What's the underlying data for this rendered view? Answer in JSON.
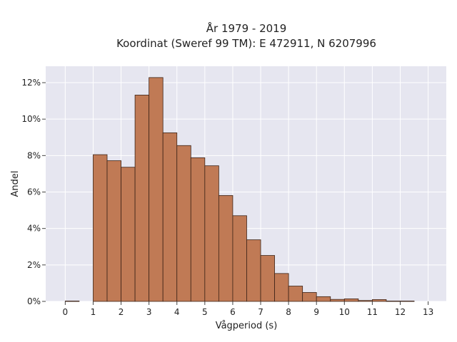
{
  "chart_data": {
    "type": "bar",
    "title_lines": [
      "År 1979 - 2019",
      "Koordinat (Sweref 99 TM): E 472911, N 6207996"
    ],
    "xlabel": "Vågperiod (s)",
    "ylabel": "Andel",
    "bin_width": 0.5,
    "bins": [
      {
        "start": 0.0,
        "value": 0.02
      },
      {
        "start": 1.0,
        "value": 8.05
      },
      {
        "start": 1.5,
        "value": 7.72
      },
      {
        "start": 2.0,
        "value": 7.36
      },
      {
        "start": 2.5,
        "value": 11.32
      },
      {
        "start": 3.0,
        "value": 12.28
      },
      {
        "start": 3.5,
        "value": 9.25
      },
      {
        "start": 4.0,
        "value": 8.55
      },
      {
        "start": 4.5,
        "value": 7.88
      },
      {
        "start": 5.0,
        "value": 7.44
      },
      {
        "start": 5.5,
        "value": 5.81
      },
      {
        "start": 6.0,
        "value": 4.7
      },
      {
        "start": 6.5,
        "value": 3.38
      },
      {
        "start": 7.0,
        "value": 2.52
      },
      {
        "start": 7.5,
        "value": 1.53
      },
      {
        "start": 8.0,
        "value": 0.84
      },
      {
        "start": 8.5,
        "value": 0.49
      },
      {
        "start": 9.0,
        "value": 0.26
      },
      {
        "start": 9.5,
        "value": 0.11
      },
      {
        "start": 10.0,
        "value": 0.14
      },
      {
        "start": 10.5,
        "value": 0.05
      },
      {
        "start": 11.0,
        "value": 0.1
      },
      {
        "start": 11.5,
        "value": 0.02
      },
      {
        "start": 12.0,
        "value": 0.02
      }
    ],
    "xlim": [
      -0.7,
      13.65
    ],
    "ylim": [
      0,
      12.9
    ],
    "x_ticks": [
      0,
      1,
      2,
      3,
      4,
      5,
      6,
      7,
      8,
      9,
      10,
      11,
      12,
      13
    ],
    "x_tick_labels": [
      "0",
      "1",
      "2",
      "3",
      "4",
      "5",
      "6",
      "7",
      "8",
      "9",
      "10",
      "11",
      "12",
      "13"
    ],
    "y_ticks": [
      0,
      2,
      4,
      6,
      8,
      10,
      12
    ],
    "y_tick_labels": [
      "0%",
      "2%",
      "4%",
      "6%",
      "8%",
      "10%",
      "12%"
    ],
    "grid": true,
    "colors": {
      "bar_fill": "#c07a55",
      "bar_edge": "#3d2418",
      "plot_background": "#e6e6f0",
      "grid": "#ffffff"
    }
  }
}
